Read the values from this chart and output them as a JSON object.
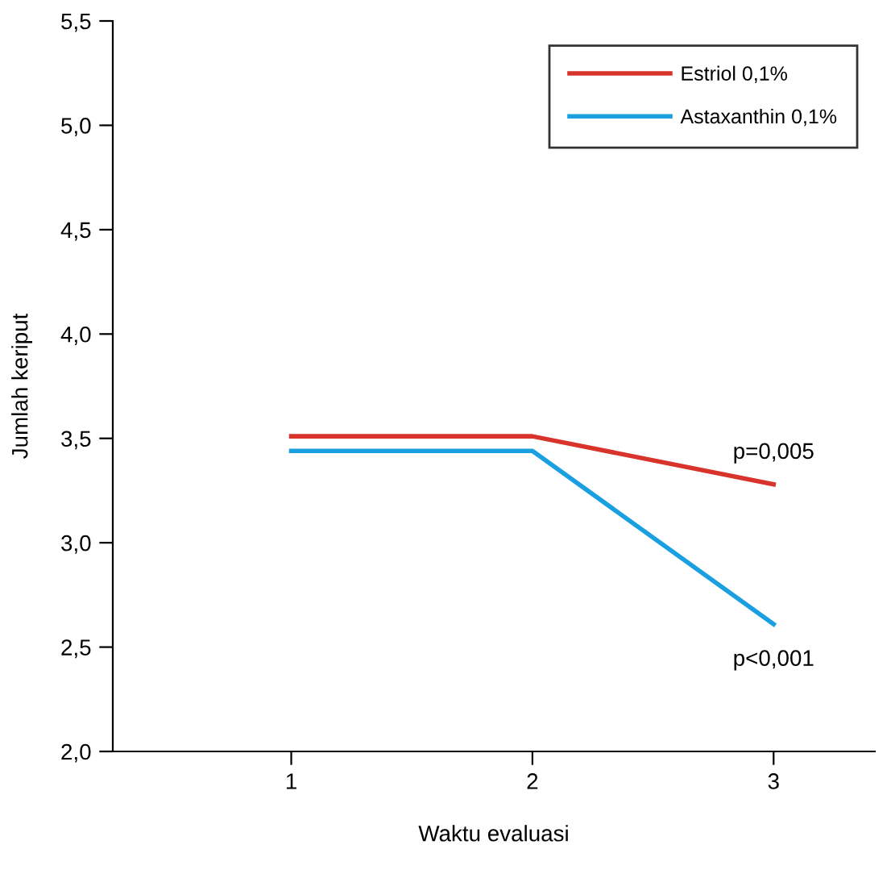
{
  "chart_data": {
    "type": "line",
    "xlabel": "Waktu evaluasi",
    "ylabel": "Jumlah keriput",
    "x": [
      1,
      2,
      3
    ],
    "xlim": [
      0.26,
      3.42
    ],
    "xticks": [
      1,
      2,
      3
    ],
    "ylim": [
      2.0,
      5.5
    ],
    "yticks": [
      {
        "value": 2.0,
        "label": "2,0"
      },
      {
        "value": 2.5,
        "label": "2,5"
      },
      {
        "value": 3.0,
        "label": "3,0"
      },
      {
        "value": 3.5,
        "label": "3,5"
      },
      {
        "value": 4.0,
        "label": "4,0"
      },
      {
        "value": 4.5,
        "label": "4,5"
      },
      {
        "value": 5.0,
        "label": "5,0"
      },
      {
        "value": 5.5,
        "label": "5,5"
      }
    ],
    "series": [
      {
        "name": "Estriol 0,1%",
        "color": "#d9342b",
        "values": [
          3.51,
          3.51,
          3.28
        ]
      },
      {
        "name": "Astaxanthin 0,1%",
        "color": "#1aa0e0",
        "values": [
          3.44,
          3.44,
          2.61
        ]
      }
    ],
    "annotations": [
      {
        "text": "p=0,005",
        "x": 3,
        "y": 3.28
      },
      {
        "text": "p<0,001",
        "x": 3,
        "y": 2.61
      }
    ],
    "legend": "top right",
    "grid": false,
    "marker": "none",
    "line_style": "solid"
  }
}
